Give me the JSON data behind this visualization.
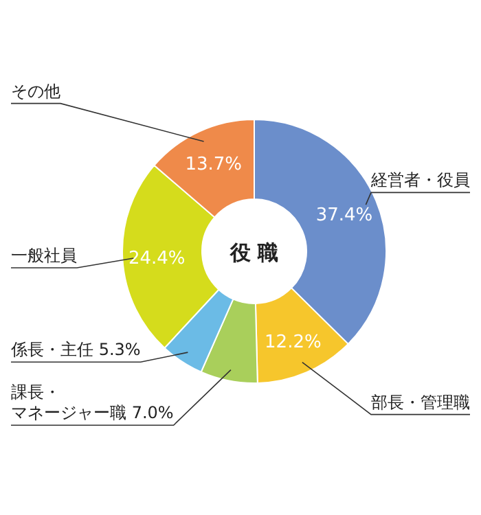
{
  "chart_data": {
    "type": "donut",
    "title": "役 職",
    "categories": [
      "経営者・役員",
      "部長・管理職",
      "課長・マネージャー職",
      "係長・主任",
      "一般社員",
      "その他"
    ],
    "values": [
      37.4,
      12.2,
      7.0,
      5.3,
      24.4,
      13.7
    ],
    "value_labels": [
      "37.4%",
      "12.2%",
      "7.0%",
      "5.3%",
      "24.4%",
      "13.7%"
    ],
    "colors": [
      "#6b8ecb",
      "#f6c62c",
      "#a9cf5b",
      "#6bbbe6",
      "#d5dc1c",
      "#ef8a4a"
    ]
  }
}
